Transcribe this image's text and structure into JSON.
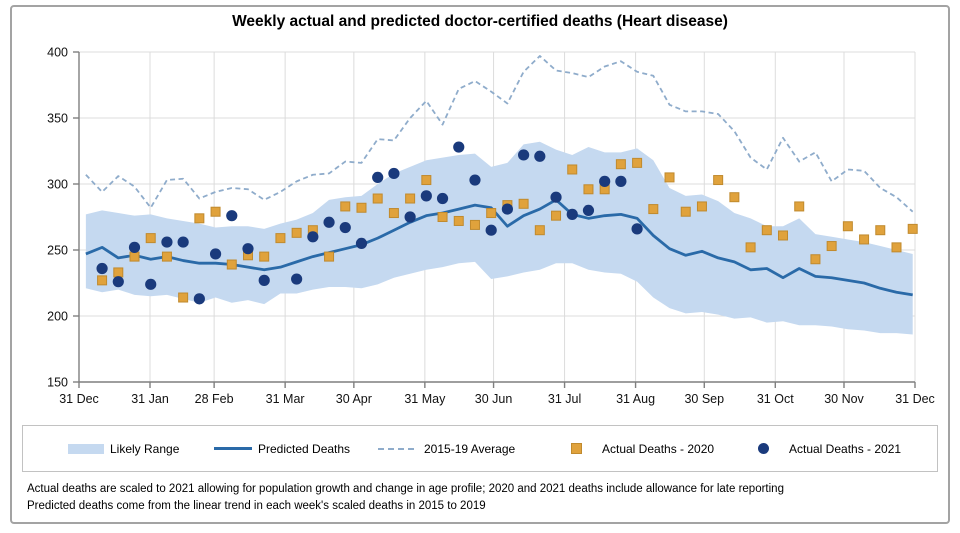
{
  "title": "Weekly actual and predicted doctor-certified deaths (Heart disease)",
  "legend": [
    {
      "label": "Likely Range"
    },
    {
      "label": "Predicted Deaths"
    },
    {
      "label": "2015-19 Average"
    },
    {
      "label": "Actual Deaths - 2020"
    },
    {
      "label": "Actual Deaths - 2021"
    }
  ],
  "footnotes": [
    "Actual deaths are scaled to 2021 allowing for population growth and change in age profile; 2020 and 2021 deaths include allowance for late reporting",
    "Predicted deaths come from the linear trend in each week's scaled deaths in 2015 to 2019"
  ],
  "colors": {
    "band": "#c5d9f0",
    "predicted": "#2a6aa8",
    "average": "#8faccb",
    "actual2020": "#e0a23c",
    "actual2020_edge": "#c08a2e",
    "actual2021": "#1a3a7c",
    "gridline": "#dcdcdc",
    "axis": "#7f7f7f",
    "label": "#111111"
  },
  "chart_data": {
    "type": "combo",
    "title": "Weekly actual and predicted doctor-certified deaths (Heart disease)",
    "x_axis": {
      "tick_labels": [
        "31 Dec",
        "31 Jan",
        "28 Feb",
        "31 Mar",
        "30 Apr",
        "31 May",
        "30 Jun",
        "31 Jul",
        "31 Aug",
        "30 Sep",
        "31 Oct",
        "30 Nov",
        "31 Dec"
      ],
      "tick_days": [
        0,
        31,
        59,
        90,
        120,
        151,
        181,
        212,
        243,
        273,
        304,
        334,
        365
      ],
      "span_days": 365
    },
    "y_axis": {
      "min": 150,
      "max": 400,
      "ticks": [
        400,
        350,
        300,
        250,
        200,
        150
      ]
    },
    "weeks": 52,
    "series": [
      {
        "name": "Likely Range",
        "type": "band",
        "upper": [
          277,
          280,
          278,
          276,
          277,
          274,
          272,
          270,
          267,
          268,
          268,
          266,
          270,
          273,
          278,
          288,
          290,
          291,
          300,
          308,
          313,
          318,
          320,
          322,
          323,
          313,
          316,
          330,
          332,
          326,
          322,
          328,
          324,
          324,
          327,
          318,
          297,
          291,
          292,
          287,
          278,
          274,
          268,
          268,
          274,
          262,
          260,
          258,
          256,
          253,
          250,
          247
        ],
        "lower": [
          221,
          218,
          220,
          216,
          215,
          216,
          213,
          210,
          214,
          210,
          212,
          209,
          217,
          217,
          220,
          222,
          222,
          221,
          224,
          229,
          232,
          235,
          237,
          240,
          241,
          228,
          230,
          233,
          235,
          240,
          240,
          235,
          233,
          232,
          226,
          214,
          206,
          202,
          203,
          201,
          198,
          199,
          195,
          196,
          193,
          193,
          192,
          190,
          189,
          187,
          187,
          186
        ]
      },
      {
        "name": "Predicted Deaths",
        "type": "line",
        "values": [
          247,
          252,
          244,
          246,
          243,
          245,
          242,
          240,
          240,
          239,
          237,
          235,
          237,
          241,
          245,
          248,
          251,
          254,
          259,
          265,
          271,
          276,
          278,
          281,
          284,
          282,
          268,
          276,
          281,
          288,
          277,
          274,
          276,
          277,
          274,
          261,
          251,
          246,
          249,
          244,
          241,
          235,
          236,
          229,
          236,
          230,
          229,
          227,
          225,
          221,
          218,
          216
        ]
      },
      {
        "name": "2015-19 Average",
        "type": "dashed-line",
        "values": [
          307,
          294,
          306,
          298,
          282,
          303,
          304,
          289,
          294,
          297,
          296,
          288,
          294,
          302,
          307,
          308,
          317,
          316,
          334,
          333,
          350,
          363,
          345,
          372,
          378,
          370,
          361,
          385,
          397,
          386,
          384,
          381,
          389,
          393,
          385,
          382,
          360,
          355,
          355,
          353,
          340,
          320,
          311,
          335,
          317,
          324,
          302,
          311,
          310,
          297,
          290,
          279
        ]
      },
      {
        "name": "Actual Deaths - 2020",
        "type": "scatter-square",
        "values": [
          null,
          227,
          233,
          245,
          259,
          245,
          214,
          274,
          279,
          239,
          246,
          245,
          259,
          263,
          265,
          245,
          283,
          282,
          289,
          278,
          289,
          303,
          275,
          272,
          269,
          278,
          284,
          285,
          265,
          276,
          311,
          296,
          296,
          315,
          316,
          281,
          305,
          279,
          283,
          303,
          290,
          252,
          265,
          261,
          283,
          243,
          253,
          268,
          258,
          265,
          252,
          266
        ]
      },
      {
        "name": "Actual Deaths - 2021",
        "type": "scatter-circle",
        "values": [
          null,
          236,
          226,
          252,
          224,
          256,
          256,
          213,
          247,
          276,
          251,
          227,
          null,
          228,
          260,
          271,
          267,
          255,
          305,
          308,
          275,
          291,
          289,
          328,
          303,
          265,
          281,
          322,
          321,
          290,
          277,
          280,
          302,
          302,
          266,
          null,
          null,
          null,
          null,
          null,
          null,
          null,
          null,
          null,
          null,
          null,
          null,
          null,
          null,
          null,
          null,
          null
        ]
      }
    ]
  }
}
